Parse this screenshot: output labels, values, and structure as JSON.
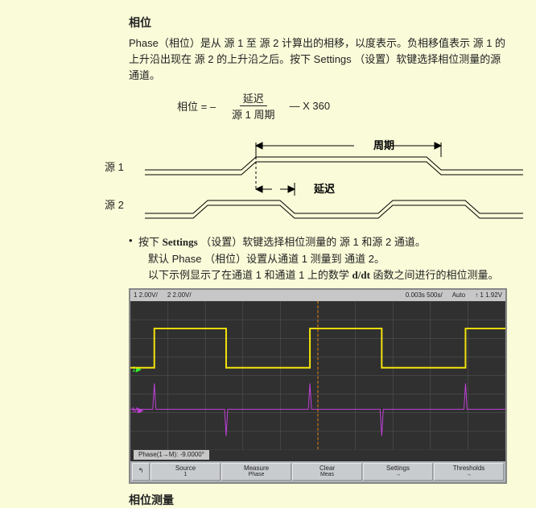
{
  "section": {
    "heading": "相位",
    "para1": "Phase（相位）是从 源 1 至 源 2 计算出的相移，以度表示。负相移值表示 源 1 的上升沿出现在 源 2 的上升沿之后。按下 Settings （设置）软键选择相位测量的源通道。",
    "formula": {
      "lhs": "相位  =   –",
      "num": "延迟",
      "den": "源 1 周期",
      "rhs": "—  X 360"
    }
  },
  "diagram": {
    "source1": "源 1",
    "source2": "源 2",
    "period_label": "周期",
    "delay_label": "延迟"
  },
  "bullets": {
    "line1_pre": "按下 ",
    "line1_bold": "Settings",
    "line1_post": " （设置）软键选择相位测量的 源 1 和源 2 通道。",
    "line2": "默认 Phase （相位）设置从通道 1 测量到 通道 2。",
    "line3_pre": "以下示例显示了在通道 1 和通道 1 上的数学 ",
    "line3_bold": "d/dt",
    "line3_post": " 函数之间进行的相位测量。"
  },
  "scope": {
    "top": {
      "ch1": "1  2.00V/",
      "ch2": "2  2.00V/",
      "time": "0.003s  500s/",
      "trig": "Auto",
      "edge": "↑ 1  1.92V"
    },
    "status": "Phase(1→M): -9.0000°",
    "buttons": [
      {
        "top": "Source",
        "bot": "1"
      },
      {
        "top": "Measure",
        "bot": "Phase"
      },
      {
        "top": "Clear",
        "bot": "Meas"
      },
      {
        "top": "Settings",
        "bot": "→"
      },
      {
        "top": "Thresholds",
        "bot": "→"
      }
    ],
    "colors": {
      "bg": "#303030",
      "grid": "#5a5a5a",
      "ch1_wave": "#f4e40a",
      "math_wave": "#c040d8",
      "cursor": "#ff8800",
      "gnd": "#30f030"
    }
  },
  "caption": "相位测量"
}
